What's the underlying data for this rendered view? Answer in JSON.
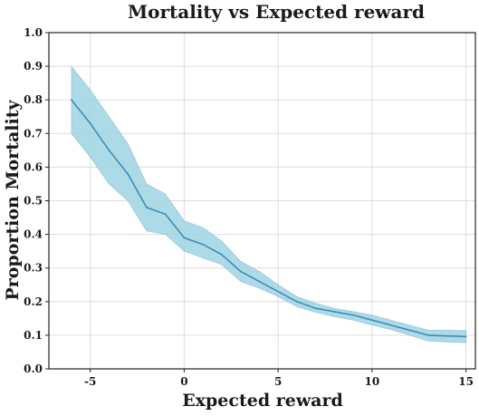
{
  "chart_data": {
    "type": "line",
    "title": "Mortality vs Expected reward",
    "xlabel": "Expected reward",
    "ylabel": "Proportion Mortality",
    "xlim": [
      -7.2,
      15.5
    ],
    "ylim": [
      0.0,
      1.0
    ],
    "x_ticks": [
      -5,
      0,
      5,
      10,
      15
    ],
    "x_tick_labels": [
      "-5",
      "0",
      "5",
      "10",
      "15"
    ],
    "y_ticks": [
      0.0,
      0.1,
      0.2,
      0.3,
      0.4,
      0.5,
      0.6,
      0.7,
      0.8,
      0.9,
      1.0
    ],
    "y_tick_labels": [
      "0.0",
      "0.1",
      "0.2",
      "0.3",
      "0.4",
      "0.5",
      "0.6",
      "0.7",
      "0.8",
      "0.9",
      "1.0"
    ],
    "grid": true,
    "line_color": "#3a8fb7",
    "band_color": "#9fd3e3",
    "series": [
      {
        "x": [
          -6,
          -5,
          -4,
          -3,
          -2,
          -1,
          0,
          1,
          2,
          3,
          4,
          5,
          6,
          7,
          8,
          9,
          10,
          11,
          12,
          13,
          14,
          15
        ],
        "values": [
          0.8,
          0.73,
          0.65,
          0.58,
          0.48,
          0.46,
          0.39,
          0.37,
          0.34,
          0.29,
          0.26,
          0.23,
          0.2,
          0.18,
          0.17,
          0.16,
          0.145,
          0.13,
          0.115,
          0.1,
          0.098,
          0.096
        ],
        "lower": [
          0.7,
          0.63,
          0.55,
          0.5,
          0.41,
          0.4,
          0.35,
          0.33,
          0.31,
          0.26,
          0.24,
          0.215,
          0.185,
          0.168,
          0.155,
          0.145,
          0.13,
          0.117,
          0.1,
          0.083,
          0.08,
          0.078
        ],
        "upper": [
          0.9,
          0.83,
          0.75,
          0.67,
          0.55,
          0.52,
          0.44,
          0.42,
          0.38,
          0.32,
          0.29,
          0.25,
          0.215,
          0.195,
          0.18,
          0.17,
          0.16,
          0.145,
          0.13,
          0.115,
          0.115,
          0.114
        ]
      }
    ]
  }
}
